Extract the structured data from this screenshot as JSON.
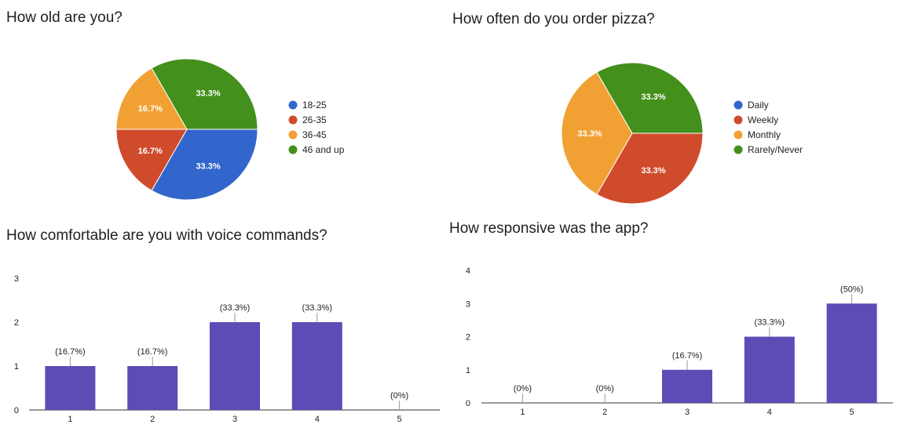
{
  "chart_data": [
    {
      "type": "pie",
      "title": "How old are you?",
      "categories": [
        "18-25",
        "26-35",
        "36-45",
        "46 and up"
      ],
      "values": [
        33.3,
        16.7,
        16.7,
        33.3
      ],
      "slice_labels": [
        "33.3%",
        "16.7%",
        "16.7%",
        "33.3%"
      ],
      "colors": [
        "#3366cc",
        "#d04b2c",
        "#f1a133",
        "#44901d"
      ],
      "legend_position": "right"
    },
    {
      "type": "pie",
      "title": "How often do you order pizza?",
      "categories": [
        "Daily",
        "Weekly",
        "Monthly",
        "Rarely/Never"
      ],
      "values": [
        0,
        33.3,
        33.3,
        33.3
      ],
      "slice_labels": [
        "",
        "33.3%",
        "33.3%",
        "33.3%"
      ],
      "colors": [
        "#3366cc",
        "#d04b2c",
        "#f1a133",
        "#44901d"
      ],
      "legend_position": "right"
    },
    {
      "type": "bar",
      "title": "How comfortable are you with voice commands?",
      "categories": [
        "1",
        "2",
        "3",
        "4",
        "5"
      ],
      "values": [
        1,
        1,
        2,
        2,
        0
      ],
      "bar_labels": [
        "(16.7%)",
        "(16.7%)",
        "(33.3%)",
        "(33.3%)",
        "(0%)"
      ],
      "ylim": [
        0,
        3
      ],
      "yticks": [
        "0",
        "1",
        "2",
        "3"
      ],
      "color": "#5e4bb5",
      "grid": false
    },
    {
      "type": "bar",
      "title": "How responsive was the app?",
      "categories": [
        "1",
        "2",
        "3",
        "4",
        "5"
      ],
      "values": [
        0,
        0,
        1,
        2,
        3
      ],
      "bar_labels": [
        "(0%)",
        "(0%)",
        "(16.7%)",
        "(33.3%)",
        "(50%)"
      ],
      "ylim": [
        0,
        4
      ],
      "yticks": [
        "0",
        "1",
        "2",
        "3",
        "4"
      ],
      "color": "#5e4bb5",
      "grid": false
    }
  ]
}
